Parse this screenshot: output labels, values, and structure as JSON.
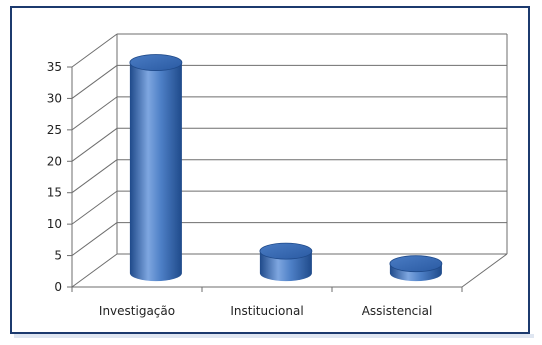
{
  "chart_data": {
    "type": "bar",
    "style": "3d-cylinder",
    "categories": [
      "Investigação",
      "Institucional",
      "Assistencial"
    ],
    "values": [
      33.5,
      3.5,
      1.5
    ],
    "y_ticks": [
      "0",
      "5",
      "10",
      "15",
      "20",
      "25",
      "30",
      "35"
    ],
    "ylim": [
      0,
      35
    ],
    "grid": true,
    "legend": "none",
    "colors": {
      "bar": "#3f6fb8",
      "bar_dark": "#1f4a8a",
      "bar_light": "#7ea6e0",
      "top": "#2e5ea8",
      "grid": "#6e6e6e",
      "frame": "#1c3a6e"
    }
  }
}
